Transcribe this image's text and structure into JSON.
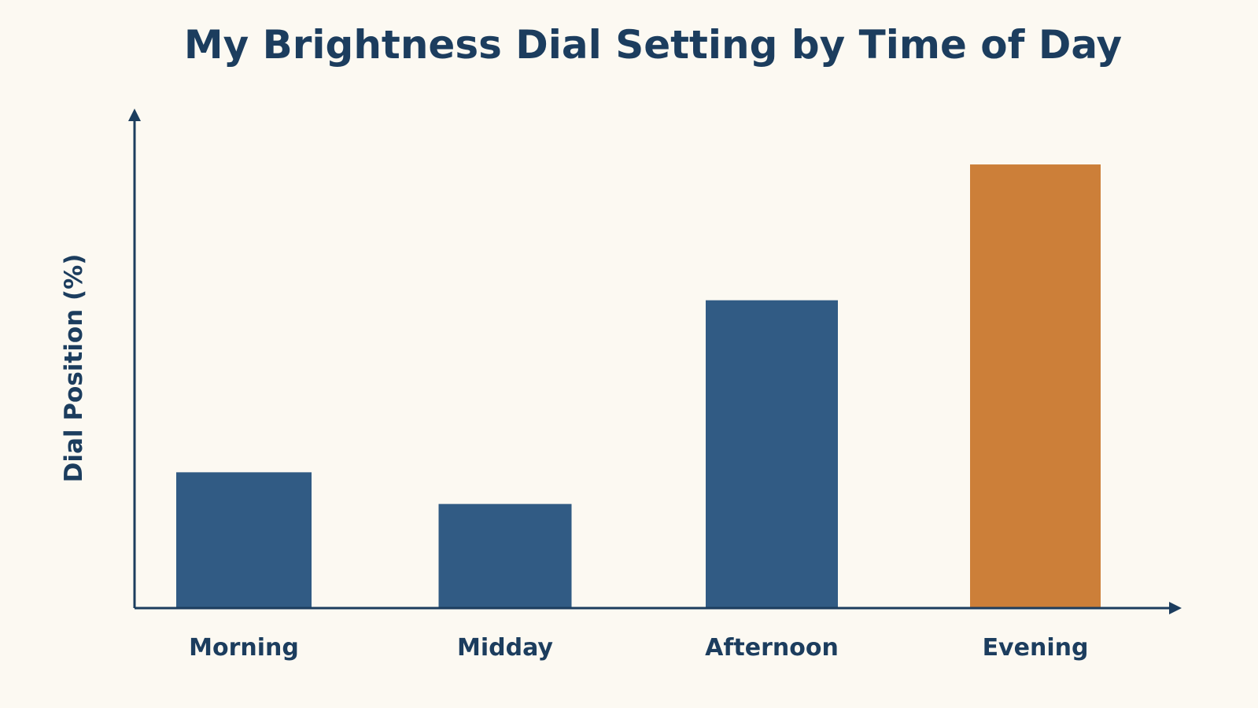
{
  "chart_data": {
    "type": "bar",
    "title": "My Brightness Dial Setting by Time of Day",
    "xlabel": "",
    "ylabel": "Dial Position (%)",
    "categories": [
      "Morning",
      "Midday",
      "Afternoon",
      "Evening"
    ],
    "values": [
      30,
      23,
      68,
      98
    ],
    "ylim": [
      0,
      110
    ],
    "grid": false,
    "legend": "none",
    "colors": {
      "bar_default": "#315b84",
      "bar_highlight": "#cc7f39",
      "axis": "#1c3d5e",
      "text": "#1c3d5e",
      "background": "#fcf9f2"
    },
    "highlight_index": 3
  }
}
